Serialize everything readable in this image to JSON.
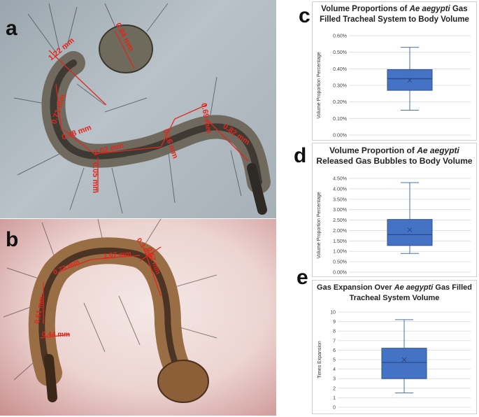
{
  "panels": {
    "a": {
      "letter": "a",
      "measurements": [
        "0.84 mm",
        "1.22 mm",
        "0.71 mm",
        "0.48 mm",
        "2.02 mm",
        "0.05 mm",
        "0.16 mm",
        "0.69 mm",
        "0.82 mm"
      ]
    },
    "b": {
      "letter": "b",
      "measurements": [
        "0.73 mm",
        "1.07 mm",
        "0.52 mm",
        "0.44 mm",
        "0.61 mm",
        "0.3 mm"
      ]
    },
    "c": {
      "letter": "c"
    },
    "d": {
      "letter": "d"
    },
    "e": {
      "letter": "e"
    }
  },
  "chart_data": [
    {
      "type": "box",
      "panel": "c",
      "title_parts": [
        "Volume Proportions of ",
        "Ae aegypti",
        " Gas Filled Tracheal System to Body Volume"
      ],
      "ylabel": "Volume Proportion Percentage",
      "xlabel": "",
      "ylim": [
        0,
        0.6
      ],
      "yticks": [
        "0.00%",
        "0.10%",
        "0.20%",
        "0.30%",
        "0.40%",
        "0.50%",
        "0.60%"
      ],
      "grid": true,
      "box": {
        "min": 0.15,
        "q1": 0.27,
        "median": 0.34,
        "mean": 0.33,
        "q3": 0.395,
        "max": 0.53
      },
      "box_color": "#4472c4"
    },
    {
      "type": "box",
      "panel": "d",
      "title_parts": [
        "Volume Proportion of ",
        "Ae aegypti",
        " Released Gas Bubbles to Body Volume"
      ],
      "ylabel": "Volume Proportion Percentage",
      "xlabel": "",
      "ylim": [
        0,
        4.5
      ],
      "yticks": [
        "0.00%",
        "0.50%",
        "1.00%",
        "1.50%",
        "2.00%",
        "2.50%",
        "3.00%",
        "3.50%",
        "4.00%",
        "4.50%"
      ],
      "grid": true,
      "box": {
        "min": 0.9,
        "q1": 1.28,
        "median": 1.8,
        "mean": 2.03,
        "q3": 2.53,
        "max": 4.3
      },
      "box_color": "#4472c4"
    },
    {
      "type": "box",
      "panel": "e",
      "title_parts": [
        "Gas  Expansion Over  ",
        "Ae aegypti",
        " Gas Filled Tracheal System Volume"
      ],
      "ylabel": "Times Expansion",
      "xlabel": "",
      "ylim": [
        0,
        10
      ],
      "yticks": [
        "0",
        "1",
        "2",
        "3",
        "4",
        "5",
        "6",
        "7",
        "8",
        "9",
        "10"
      ],
      "grid": true,
      "box": {
        "min": 1.5,
        "q1": 3.0,
        "median": 4.7,
        "mean": 5.0,
        "q3": 6.2,
        "max": 9.2
      },
      "box_color": "#4472c4"
    }
  ]
}
